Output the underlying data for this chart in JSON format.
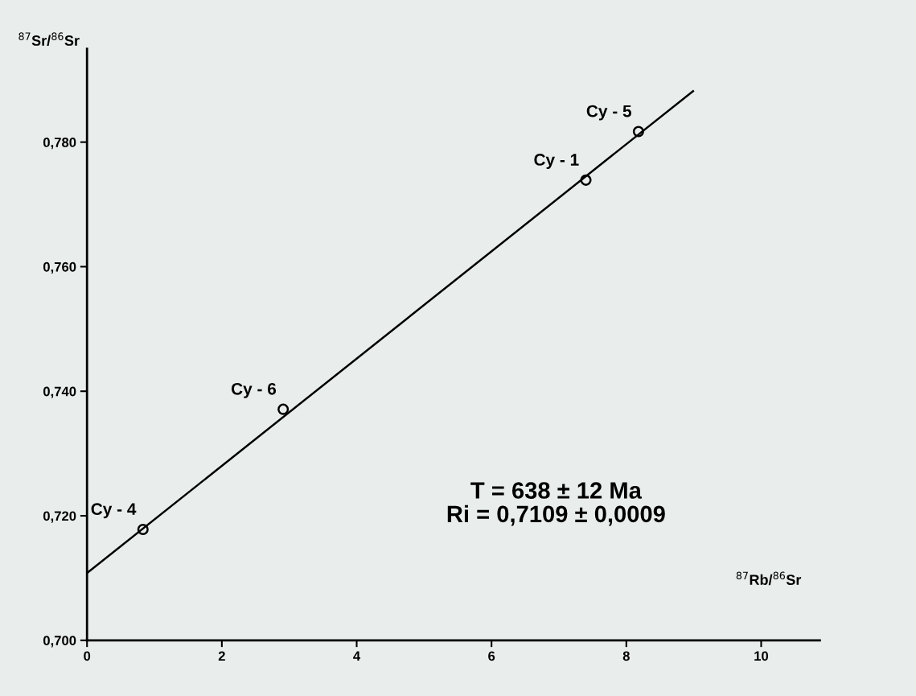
{
  "chart_data": {
    "type": "scatter",
    "xlabel": "$^{87}$Rb/$^{86}$Sr",
    "ylabel": "$^{87}$Sr/$^{86}$Sr",
    "series": [
      {
        "color": "#000000",
        "marker": "circle",
        "x": [
          0.83,
          2.91,
          7.4,
          8.18
        ],
        "values": [
          0.7178,
          0.7371,
          0.7739,
          0.7817
        ]
      },
      {
        "type": "line",
        "color": "#000000",
        "marker": "none",
        "line_style": "solid",
        "x": [
          0,
          8.99
        ],
        "values": [
          0.7108,
          0.7882
        ]
      }
    ],
    "annotations": [
      {
        "text": "Cy - 4",
        "x": 0.83,
        "y": 0.7178
      },
      {
        "text": "Cy - 6",
        "x": 2.91,
        "y": 0.7371
      },
      {
        "text": "Cy - 1",
        "x": 7.4,
        "y": 0.7739
      },
      {
        "text": "Cy - 5",
        "x": 8.18,
        "y": 0.7817
      },
      "T = 638 ± 12 Ma\nRi = 0,7109 ± 0,0009"
    ],
    "xlim": [
      0,
      10.87
    ],
    "ylim": [
      0.7,
      0.795
    ],
    "xticks": [
      0,
      2,
      4,
      6,
      8,
      10
    ],
    "yticks": [
      {
        "value": 0.7,
        "label": "0,700"
      },
      {
        "value": 0.72,
        "label": "0,720"
      },
      {
        "value": 0.74,
        "label": "0,740"
      },
      {
        "value": 0.76,
        "label": "0,760"
      },
      {
        "value": 0.78,
        "label": "0,780"
      }
    ],
    "grid": false,
    "legend": false
  }
}
